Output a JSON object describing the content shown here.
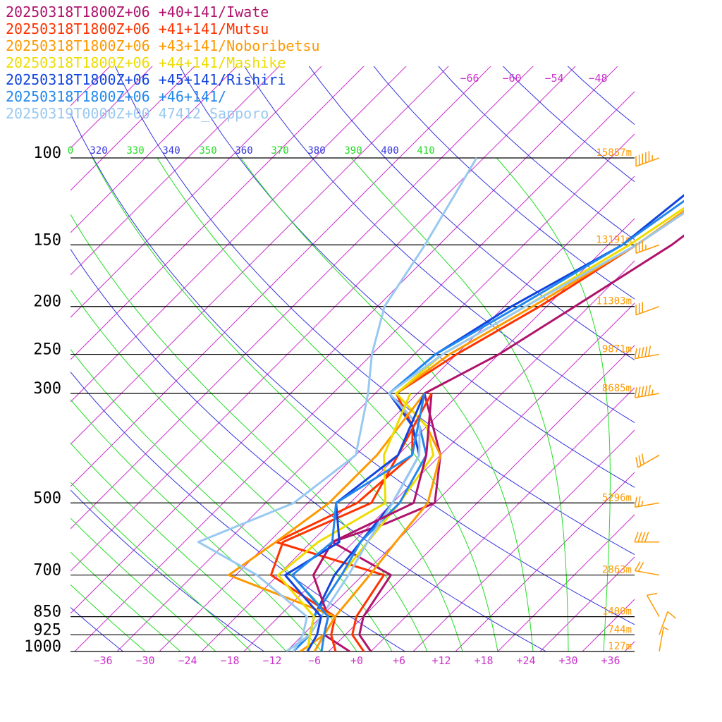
{
  "chart_data": {
    "type": "line",
    "title": "",
    "xlabel": "",
    "ylabel": "",
    "xlim": [
      -40,
      40
    ],
    "plim": [
      1000,
      100
    ],
    "pressure_levels": [
      100,
      150,
      200,
      250,
      300,
      500,
      700,
      850,
      925,
      1000
    ],
    "pressure_labels": [
      "100",
      "150",
      "200",
      "250",
      "300",
      "500",
      "700",
      "850",
      "925",
      "1000"
    ],
    "height_labels": [
      "15857m",
      "13191m",
      "11303m",
      "9871m",
      "8685m",
      "5296m",
      "2863m",
      "1400m",
      "744m",
      "127m"
    ],
    "x_ticks": [
      -36,
      -30,
      -24,
      -18,
      -12,
      -6,
      0,
      6,
      12,
      18,
      24,
      30,
      36
    ],
    "x_tick_labels": [
      "−36",
      "−30",
      "−24",
      "−18",
      "−12",
      "−6",
      "+0",
      "+6",
      "+12",
      "+18",
      "+24",
      "+30",
      "+36"
    ],
    "theta_labels": [
      {
        "text": "0",
        "color": "#22dd22"
      },
      {
        "text": "320",
        "color": "#3333dd"
      },
      {
        "text": "330",
        "color": "#22dd22"
      },
      {
        "text": "340",
        "color": "#3333dd"
      },
      {
        "text": "350",
        "color": "#22dd22"
      },
      {
        "text": "360",
        "color": "#3333dd"
      },
      {
        "text": "370",
        "color": "#22dd22"
      },
      {
        "text": "380",
        "color": "#3333dd"
      },
      {
        "text": "390",
        "color": "#22dd22"
      },
      {
        "text": "400",
        "color": "#3333dd"
      },
      {
        "text": "410",
        "color": "#22dd22"
      }
    ],
    "isotherm_top_labels": [
      "−66",
      "−60",
      "−54",
      "−48"
    ],
    "series": [
      {
        "name": "20250318T1800Z+06 +40+141/Iwate",
        "color": "#b0136b",
        "points": [
          [
            1000,
            2
          ],
          [
            925,
            -2
          ],
          [
            850,
            -4
          ],
          [
            700,
            -6
          ],
          [
            600,
            -19
          ],
          [
            550,
            -14
          ],
          [
            500,
            -10
          ],
          [
            400,
            -16
          ],
          [
            300,
            -27
          ],
          [
            250,
            -22
          ],
          [
            200,
            -18
          ],
          [
            150,
            -13
          ],
          [
            100,
            -9
          ]
        ]
      },
      {
        "name": "20250318T1800Z+06 +41+141/Mutsu",
        "color": "#ff3300",
        "points": [
          [
            1000,
            1
          ],
          [
            925,
            -3
          ],
          [
            850,
            -5
          ],
          [
            700,
            -7
          ],
          [
            600,
            -27
          ],
          [
            500,
            -21
          ],
          [
            400,
            -20
          ],
          [
            350,
            -24
          ],
          [
            300,
            -31
          ],
          [
            250,
            -28
          ],
          [
            200,
            -23
          ],
          [
            150,
            -18
          ],
          [
            100,
            -12
          ]
        ]
      },
      {
        "name": "20250318T1800Z+06 +43+141/Noboribetsu",
        "color": "#ff9900",
        "points": [
          [
            1000,
            -8
          ],
          [
            925,
            -7
          ],
          [
            850,
            -8
          ],
          [
            700,
            -9
          ],
          [
            600,
            -10
          ],
          [
            500,
            -11
          ],
          [
            400,
            -16
          ],
          [
            350,
            -22
          ],
          [
            300,
            -31
          ],
          [
            250,
            -29
          ],
          [
            200,
            -24
          ],
          [
            150,
            -18
          ],
          [
            100,
            -13
          ]
        ]
      },
      {
        "name": "20250318T1800Z+06 +44+141/Mashike",
        "color": "#eedd00",
        "points": [
          [
            1000,
            -10
          ],
          [
            925,
            -9
          ],
          [
            850,
            -11
          ],
          [
            700,
            -13
          ],
          [
            600,
            -14
          ],
          [
            500,
            -15
          ],
          [
            400,
            -17
          ],
          [
            350,
            -22
          ],
          [
            300,
            -31
          ],
          [
            250,
            -30
          ],
          [
            200,
            -25
          ],
          [
            150,
            -19
          ],
          [
            100,
            -13
          ]
        ]
      },
      {
        "name": "20250318T1800Z+06 +45+141/Rishiri",
        "color": "#1144dd",
        "points": [
          [
            1000,
            -10
          ],
          [
            925,
            -9
          ],
          [
            850,
            -11
          ],
          [
            700,
            -14
          ],
          [
            600,
            -15
          ],
          [
            500,
            -16
          ],
          [
            400,
            -19
          ],
          [
            350,
            -24
          ],
          [
            300,
            -32
          ],
          [
            250,
            -31
          ],
          [
            200,
            -27
          ],
          [
            150,
            -20
          ],
          [
            100,
            -17
          ]
        ]
      },
      {
        "name": "20250318T1800Z+06 +46+141/",
        "color": "#2288ee",
        "points": [
          [
            1000,
            -9
          ],
          [
            925,
            -9
          ],
          [
            850,
            -11
          ],
          [
            700,
            -13
          ],
          [
            600,
            -15
          ],
          [
            500,
            -15
          ],
          [
            400,
            -18
          ],
          [
            350,
            -23
          ],
          [
            300,
            -32
          ],
          [
            250,
            -31
          ],
          [
            200,
            -26
          ],
          [
            150,
            -20
          ],
          [
            100,
            -15
          ]
        ]
      },
      {
        "name": "20250319T0000Z+00 47412_Sapporo",
        "color": "#99c9f0",
        "points": [
          [
            1000,
            -10
          ],
          [
            925,
            -9
          ],
          [
            850,
            -10
          ],
          [
            700,
            -12
          ],
          [
            600,
            -14
          ],
          [
            500,
            -16
          ],
          [
            400,
            -19
          ],
          [
            350,
            -23
          ],
          [
            300,
            -32
          ],
          [
            250,
            -30
          ],
          [
            200,
            -25
          ],
          [
            150,
            -18
          ],
          [
            100,
            -12
          ]
        ]
      }
    ],
    "dewpoint_series": [
      {
        "name": "20250318T1800Z+06 +40+141/Iwate",
        "color": "#b0136b",
        "points": [
          [
            1000,
            -1
          ],
          [
            925,
            -7
          ],
          [
            850,
            -9
          ],
          [
            700,
            -17
          ],
          [
            600,
            -19
          ],
          [
            500,
            -13
          ],
          [
            400,
            -18
          ],
          [
            300,
            -26
          ]
        ]
      },
      {
        "name": "20250318T1800Z+06 +41+141/Mutsu",
        "color": "#ff3300",
        "points": [
          [
            1000,
            -3
          ],
          [
            925,
            -6
          ],
          [
            850,
            -8
          ],
          [
            700,
            -23
          ],
          [
            600,
            -26
          ],
          [
            500,
            -19
          ],
          [
            400,
            -22
          ],
          [
            300,
            -26
          ]
        ]
      },
      {
        "name": "20250318T1800Z+06 +43+141/Noboribetsu",
        "color": "#ff9900",
        "points": [
          [
            1000,
            -6
          ],
          [
            925,
            -7
          ],
          [
            850,
            -8
          ],
          [
            700,
            -29
          ],
          [
            600,
            -27
          ],
          [
            500,
            -25
          ],
          [
            400,
            -25
          ],
          [
            300,
            -27
          ]
        ]
      },
      {
        "name": "20250318T1800Z+06 +44+141/Mashike",
        "color": "#eedd00",
        "points": [
          [
            1000,
            -7
          ],
          [
            925,
            -9
          ],
          [
            850,
            -11
          ],
          [
            700,
            -22
          ],
          [
            600,
            -21
          ],
          [
            500,
            -17
          ],
          [
            400,
            -24
          ],
          [
            300,
            -29
          ]
        ]
      },
      {
        "name": "20250318T1800Z+06 +45+141/Rishiri",
        "color": "#1144dd",
        "points": [
          [
            1000,
            -7
          ],
          [
            925,
            -8
          ],
          [
            850,
            -10
          ],
          [
            700,
            -21
          ],
          [
            600,
            -18
          ],
          [
            500,
            -24
          ],
          [
            400,
            -22
          ],
          [
            300,
            -27
          ]
        ]
      },
      {
        "name": "20250318T1800Z+06 +46+141/",
        "color": "#2288ee",
        "points": [
          [
            1000,
            -5
          ],
          [
            925,
            -7
          ],
          [
            850,
            -9
          ],
          [
            700,
            -20
          ],
          [
            600,
            -19
          ],
          [
            500,
            -24
          ],
          [
            400,
            -20
          ],
          [
            300,
            -27
          ]
        ]
      },
      {
        "name": "20250319T0000Z+00 47412_Sapporo",
        "color": "#99c9f0",
        "points": [
          [
            1000,
            -9
          ],
          [
            925,
            -10
          ],
          [
            850,
            -12
          ],
          [
            700,
            -25
          ],
          [
            600,
            -38
          ],
          [
            500,
            -30
          ],
          [
            400,
            -28
          ],
          [
            300,
            -35
          ],
          [
            250,
            -40
          ],
          [
            200,
            -45
          ],
          [
            150,
            -48
          ],
          [
            100,
            -53
          ]
        ]
      }
    ],
    "wind_barbs": [
      {
        "p": 100,
        "dir": 250,
        "speed_kt": 55
      },
      {
        "p": 150,
        "dir": 250,
        "speed_kt": 35
      },
      {
        "p": 200,
        "dir": 250,
        "speed_kt": 30
      },
      {
        "p": 250,
        "dir": 260,
        "speed_kt": 50
      },
      {
        "p": 300,
        "dir": 260,
        "speed_kt": 55
      },
      {
        "p": 400,
        "dir": 240,
        "speed_kt": 30
      },
      {
        "p": 500,
        "dir": 260,
        "speed_kt": 25
      },
      {
        "p": 600,
        "dir": 270,
        "speed_kt": 40
      },
      {
        "p": 700,
        "dir": 280,
        "speed_kt": 20
      },
      {
        "p": 850,
        "dir": 330,
        "speed_kt": 10
      },
      {
        "p": 925,
        "dir": 20,
        "speed_kt": 10
      },
      {
        "p": 1000,
        "dir": 10,
        "speed_kt": 5
      }
    ],
    "grid": true,
    "legend_placement": "top-left"
  },
  "colors": {
    "isotherm": "#cc33cc",
    "dry_adiabat": "#3333dd",
    "moist_adiabat": "#22dd22",
    "height_label": "#ff9900",
    "x_tick": "#cc33cc",
    "barb": "#ff9900"
  }
}
